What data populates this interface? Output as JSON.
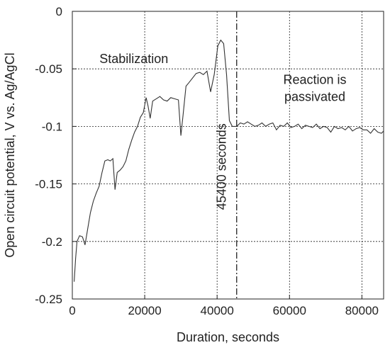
{
  "chart_data": {
    "type": "line",
    "xlabel": "Duration, seconds",
    "ylabel": "Open circuit potential, V vs. Ag/AgCl",
    "xlim": [
      0,
      86000
    ],
    "ylim": [
      -0.25,
      0
    ],
    "xticks": [
      0,
      20000,
      40000,
      60000,
      80000
    ],
    "xtick_labels": [
      "0",
      "20000",
      "40000",
      "60000",
      "80000"
    ],
    "yticks": [
      0,
      -0.05,
      -0.1,
      -0.15,
      -0.2,
      -0.25
    ],
    "ytick_labels": [
      "0",
      "-0.05",
      "-0.1",
      "-0.15",
      "-0.2",
      "-0.25"
    ],
    "grid": true,
    "series": [
      {
        "color": "#333333",
        "x": [
          500,
          900,
          1300,
          2000,
          2800,
          3500,
          4200,
          5000,
          5800,
          6600,
          7400,
          8200,
          9000,
          9800,
          10500,
          11200,
          11800,
          12400,
          13200,
          14000,
          14800,
          15600,
          16400,
          17200,
          18000,
          18800,
          19600,
          20400,
          20900,
          21500,
          22200,
          23200,
          24200,
          25200,
          26200,
          27200,
          28200,
          29300,
          30000,
          30600,
          31400,
          32200,
          33200,
          34200,
          35200,
          36200,
          37200,
          38200,
          39200,
          40200,
          41000,
          41800,
          42600,
          43400,
          44200,
          45400,
          46400,
          47400,
          48400,
          49400,
          50400,
          51400,
          52400,
          53400,
          54400,
          55400,
          56400,
          57400,
          58400,
          59400,
          60400,
          61400,
          62400,
          63400,
          64400,
          65400,
          66400,
          67400,
          68400,
          69400,
          70400,
          71400,
          72400,
          73400,
          74400,
          75400,
          76400,
          77400,
          78400,
          79400,
          80400,
          81400,
          82400,
          83400,
          84400,
          85400,
          86000
        ],
        "y": [
          -0.235,
          -0.215,
          -0.2,
          -0.195,
          -0.196,
          -0.203,
          -0.19,
          -0.175,
          -0.165,
          -0.158,
          -0.152,
          -0.14,
          -0.13,
          -0.129,
          -0.13,
          -0.128,
          -0.155,
          -0.14,
          -0.138,
          -0.135,
          -0.13,
          -0.12,
          -0.112,
          -0.105,
          -0.1,
          -0.092,
          -0.088,
          -0.075,
          -0.082,
          -0.093,
          -0.078,
          -0.076,
          -0.074,
          -0.077,
          -0.078,
          -0.075,
          -0.076,
          -0.077,
          -0.108,
          -0.09,
          -0.065,
          -0.062,
          -0.058,
          -0.054,
          -0.053,
          -0.055,
          -0.052,
          -0.07,
          -0.055,
          -0.03,
          -0.025,
          -0.028,
          -0.055,
          -0.095,
          -0.1,
          -0.1,
          -0.097,
          -0.098,
          -0.096,
          -0.098,
          -0.1,
          -0.099,
          -0.097,
          -0.1,
          -0.098,
          -0.097,
          -0.103,
          -0.099,
          -0.1,
          -0.097,
          -0.101,
          -0.1,
          -0.098,
          -0.102,
          -0.099,
          -0.1,
          -0.101,
          -0.098,
          -0.102,
          -0.1,
          -0.101,
          -0.105,
          -0.1,
          -0.102,
          -0.101,
          -0.103,
          -0.1,
          -0.104,
          -0.102,
          -0.101,
          -0.103,
          -0.103,
          -0.106,
          -0.102,
          -0.105,
          -0.106,
          -0.104
        ]
      }
    ],
    "marker_line": {
      "x": 45400,
      "style": "dash-dot",
      "label": "45400 seconds"
    },
    "annotations": [
      {
        "text": "Stabilization",
        "x": 17000,
        "y": -0.045
      },
      {
        "text": "Reaction is",
        "x": 67000,
        "y": -0.063
      },
      {
        "text": "passivated",
        "x": 67000,
        "y": -0.078
      }
    ]
  }
}
